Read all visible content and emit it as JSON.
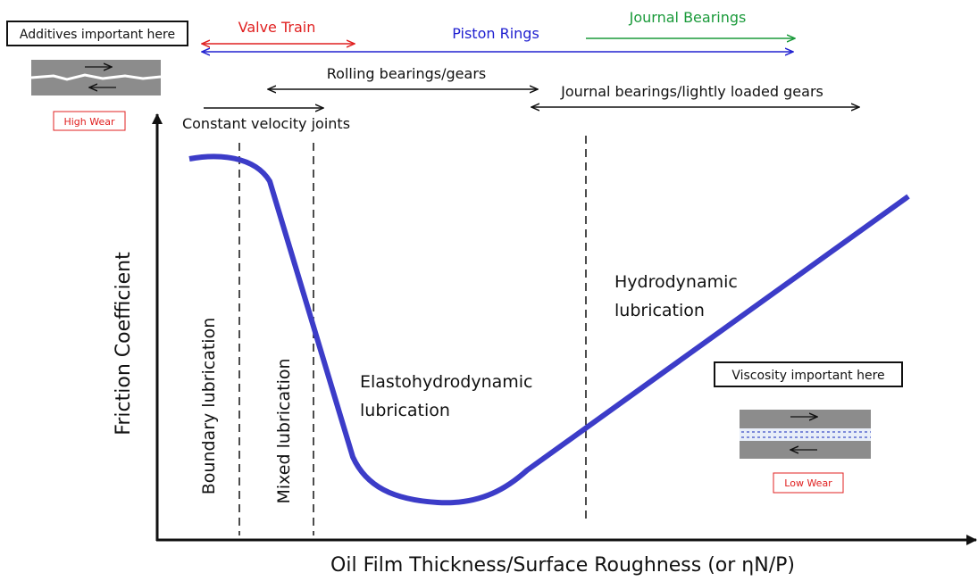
{
  "notes": {
    "additives": "Additives important here",
    "high_wear": "High Wear",
    "viscosity": "Viscosity important here",
    "low_wear": "Low Wear"
  },
  "applications": {
    "valve_train": "Valve Train",
    "piston_rings": "Piston Rings",
    "journal_bearings": "Journal Bearings",
    "rolling_bearings": "Rolling bearings/gears",
    "journal_lightly_loaded": "Journal bearings/lightly loaded gears",
    "cv_joints": "Constant velocity joints"
  },
  "regimes": {
    "boundary": "Boundary lubrication",
    "mixed": "Mixed lubrication",
    "ehd": [
      "Elastohydrodynamic",
      "lubrication"
    ],
    "hydrodynamic": [
      "Hydrodynamic",
      "lubrication"
    ]
  },
  "axes": {
    "y_label": "Friction Coefficient",
    "x_label": "Oil Film Thickness/Surface Roughness  (or ηN/P)"
  }
}
